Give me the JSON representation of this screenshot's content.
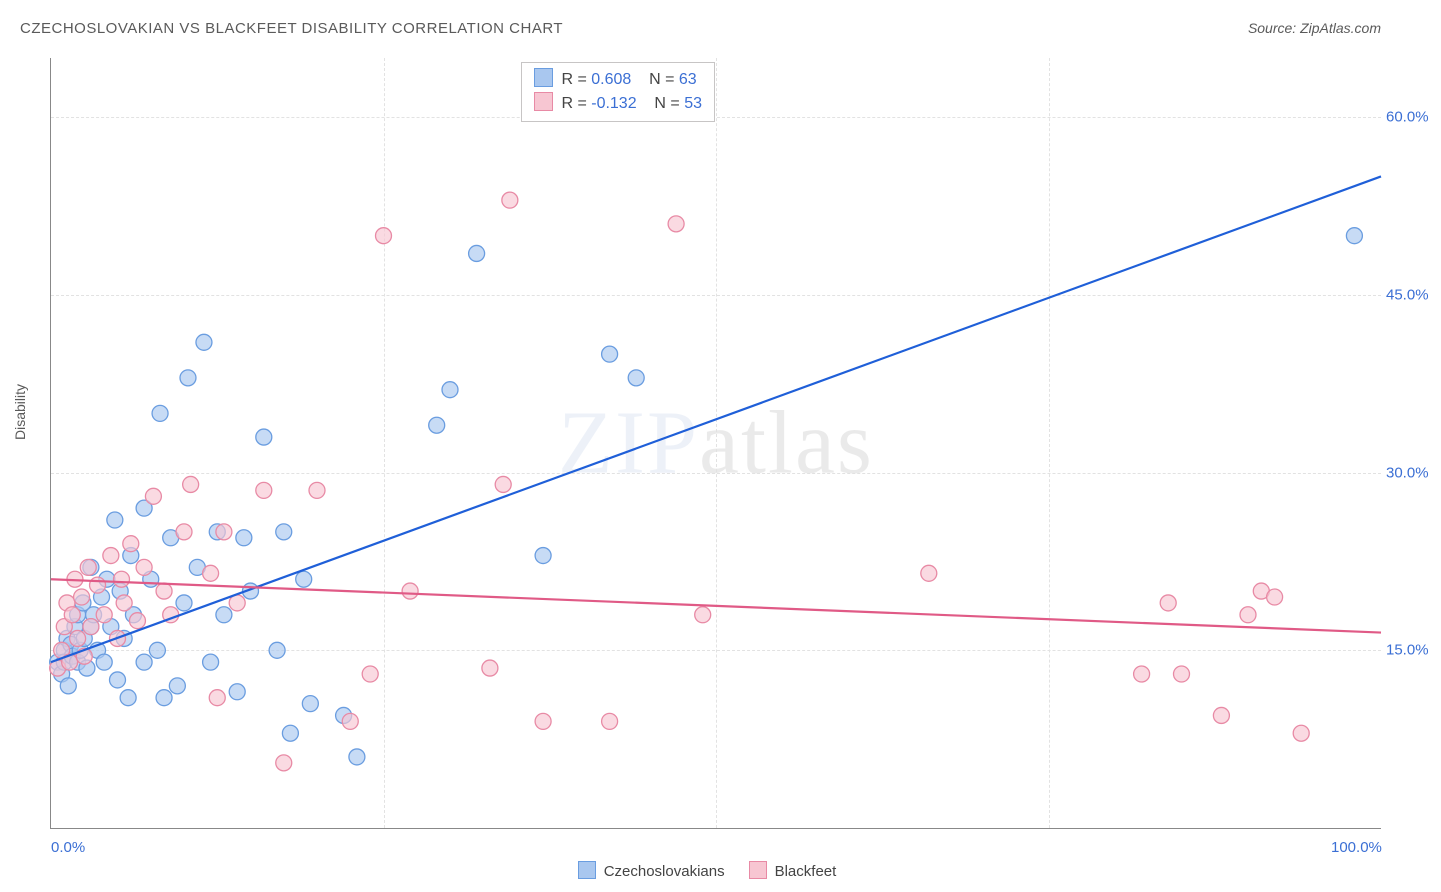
{
  "title": "CZECHOSLOVAKIAN VS BLACKFEET DISABILITY CORRELATION CHART",
  "source": "Source: ZipAtlas.com",
  "ylabel": "Disability",
  "watermark": {
    "part1": "ZIP",
    "part2": "atlas"
  },
  "chart": {
    "type": "scatter",
    "xlim": [
      0,
      100
    ],
    "ylim": [
      0,
      65
    ],
    "x_ticks": [
      {
        "value": 0,
        "label": "0.0%"
      },
      {
        "value": 100,
        "label": "100.0%"
      }
    ],
    "y_ticks": [
      {
        "value": 15,
        "label": "15.0%"
      },
      {
        "value": 30,
        "label": "30.0%"
      },
      {
        "value": 45,
        "label": "45.0%"
      },
      {
        "value": 60,
        "label": "60.0%"
      }
    ],
    "x_grid_positions": [
      25,
      50,
      75
    ],
    "grid_color": "#e2e2e2",
    "axis_label_fontsize": 14,
    "tick_fontsize": 15,
    "tick_color": "#3b6fd4",
    "background_color": "#ffffff",
    "marker_radius": 8,
    "marker_stroke_width": 1.3,
    "trend_line_width": 2.2
  },
  "series": [
    {
      "name": "Czechoslovakians",
      "fill_color": "#a9c7ef",
      "stroke_color": "#6a9de0",
      "fill_opacity": 0.65,
      "R": "0.608",
      "N": "63",
      "trend": {
        "x1": 0,
        "y1": 14,
        "x2": 100,
        "y2": 55,
        "color": "#1f5fd8"
      },
      "points": [
        [
          0.5,
          14
        ],
        [
          0.8,
          13
        ],
        [
          1,
          15
        ],
        [
          1,
          14
        ],
        [
          1.2,
          16
        ],
        [
          1.3,
          12
        ],
        [
          1.5,
          15.5
        ],
        [
          1.6,
          14.5
        ],
        [
          1.8,
          17
        ],
        [
          2,
          14
        ],
        [
          2,
          18
        ],
        [
          2.2,
          15
        ],
        [
          2.4,
          19
        ],
        [
          2.5,
          16
        ],
        [
          2.7,
          13.5
        ],
        [
          3,
          17
        ],
        [
          3,
          22
        ],
        [
          3.2,
          18
        ],
        [
          3.5,
          15
        ],
        [
          3.8,
          19.5
        ],
        [
          4,
          14
        ],
        [
          4.2,
          21
        ],
        [
          4.5,
          17
        ],
        [
          4.8,
          26
        ],
        [
          5,
          12.5
        ],
        [
          5.2,
          20
        ],
        [
          5.5,
          16
        ],
        [
          5.8,
          11
        ],
        [
          6,
          23
        ],
        [
          6.2,
          18
        ],
        [
          7,
          14
        ],
        [
          7,
          27
        ],
        [
          7.5,
          21
        ],
        [
          8,
          15
        ],
        [
          8.2,
          35
        ],
        [
          8.5,
          11
        ],
        [
          9,
          24.5
        ],
        [
          9.5,
          12
        ],
        [
          10,
          19
        ],
        [
          10.3,
          38
        ],
        [
          11,
          22
        ],
        [
          11.5,
          41
        ],
        [
          12,
          14
        ],
        [
          12.5,
          25
        ],
        [
          13,
          18
        ],
        [
          14,
          11.5
        ],
        [
          14.5,
          24.5
        ],
        [
          15,
          20
        ],
        [
          16,
          33
        ],
        [
          17,
          15
        ],
        [
          17.5,
          25
        ],
        [
          18,
          8
        ],
        [
          19,
          21
        ],
        [
          19.5,
          10.5
        ],
        [
          22,
          9.5
        ],
        [
          23,
          6
        ],
        [
          29,
          34
        ],
        [
          30,
          37
        ],
        [
          32,
          48.5
        ],
        [
          37,
          23
        ],
        [
          42,
          40
        ],
        [
          44,
          38
        ],
        [
          98,
          50
        ]
      ]
    },
    {
      "name": "Blackfeet",
      "fill_color": "#f7c6d2",
      "stroke_color": "#e88aa5",
      "fill_opacity": 0.65,
      "R": "-0.132",
      "N": "53",
      "trend": {
        "x1": 0,
        "y1": 21,
        "x2": 100,
        "y2": 16.5,
        "color": "#e05a86"
      },
      "points": [
        [
          0.5,
          13.5
        ],
        [
          0.8,
          15
        ],
        [
          1,
          17
        ],
        [
          1.2,
          19
        ],
        [
          1.4,
          14
        ],
        [
          1.6,
          18
        ],
        [
          1.8,
          21
        ],
        [
          2,
          16
        ],
        [
          2.3,
          19.5
        ],
        [
          2.5,
          14.5
        ],
        [
          2.8,
          22
        ],
        [
          3,
          17
        ],
        [
          3.5,
          20.5
        ],
        [
          4,
          18
        ],
        [
          4.5,
          23
        ],
        [
          5,
          16
        ],
        [
          5.3,
          21
        ],
        [
          5.5,
          19
        ],
        [
          6,
          24
        ],
        [
          6.5,
          17.5
        ],
        [
          7,
          22
        ],
        [
          7.7,
          28
        ],
        [
          8.5,
          20
        ],
        [
          9,
          18
        ],
        [
          10,
          25
        ],
        [
          10.5,
          29
        ],
        [
          12,
          21.5
        ],
        [
          12.5,
          11
        ],
        [
          13,
          25
        ],
        [
          14,
          19
        ],
        [
          16,
          28.5
        ],
        [
          17.5,
          5.5
        ],
        [
          20,
          28.5
        ],
        [
          22.5,
          9
        ],
        [
          24,
          13
        ],
        [
          25,
          50
        ],
        [
          27,
          20
        ],
        [
          33,
          13.5
        ],
        [
          34,
          29
        ],
        [
          34.5,
          53
        ],
        [
          37,
          9
        ],
        [
          42,
          9
        ],
        [
          47,
          51
        ],
        [
          49,
          18
        ],
        [
          66,
          21.5
        ],
        [
          82,
          13
        ],
        [
          84,
          19
        ],
        [
          85,
          13
        ],
        [
          88,
          9.5
        ],
        [
          90,
          18
        ],
        [
          91,
          20
        ],
        [
          92,
          19.5
        ],
        [
          94,
          8
        ]
      ]
    }
  ],
  "legend_bottom": {
    "items": [
      {
        "label": "Czechoslovakians",
        "fill": "#a9c7ef",
        "stroke": "#6a9de0"
      },
      {
        "label": "Blackfeet",
        "fill": "#f7c6d2",
        "stroke": "#e88aa5"
      }
    ]
  },
  "stats_box": {
    "r_label": "R =",
    "n_label": "N ="
  }
}
